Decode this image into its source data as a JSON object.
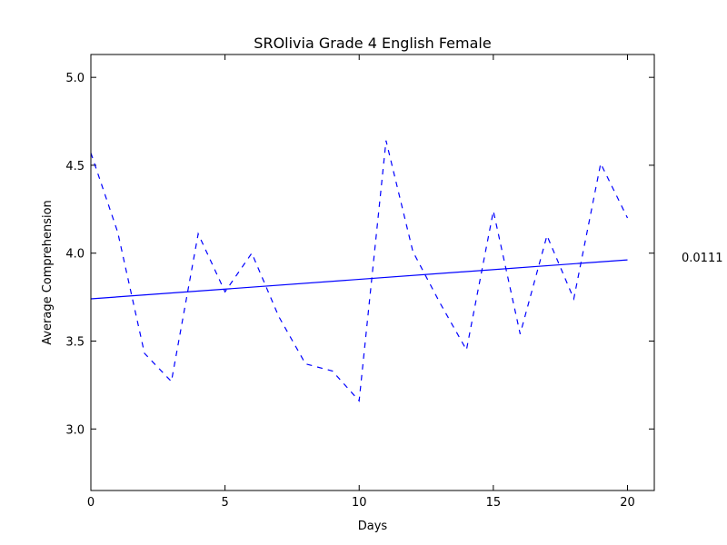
{
  "chart_data": {
    "type": "line",
    "title": "SROlivia Grade 4 English Female",
    "xlabel": "Days",
    "ylabel": "Average Comprehension",
    "xlim": [
      0,
      21
    ],
    "ylim": [
      2.65,
      5.13
    ],
    "xticks": [
      "0",
      "5",
      "10",
      "15",
      "20"
    ],
    "yticks": [
      "3.0",
      "3.5",
      "4.0",
      "4.5",
      "5.0"
    ],
    "grid": false,
    "annotation": "0.0111",
    "series": [
      {
        "style": "dashed",
        "color": "#0000ff",
        "x": [
          0,
          1,
          2,
          3,
          4,
          5,
          6,
          7,
          8,
          9,
          10,
          11,
          12,
          13,
          14,
          15,
          16,
          17,
          18,
          19,
          20
        ],
        "y": [
          4.57,
          4.12,
          3.43,
          3.27,
          4.11,
          3.78,
          4.0,
          3.64,
          3.37,
          3.33,
          3.16,
          4.64,
          4.01,
          3.72,
          3.45,
          4.24,
          3.54,
          4.1,
          3.74,
          4.51,
          4.2
        ]
      },
      {
        "style": "solid",
        "color": "#0000ff",
        "x": [
          0,
          20
        ],
        "y": [
          3.74,
          3.962
        ]
      }
    ]
  }
}
